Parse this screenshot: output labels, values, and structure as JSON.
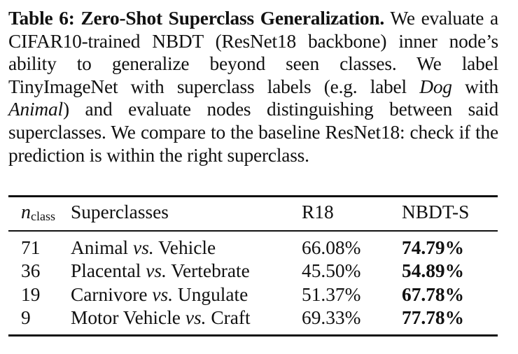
{
  "caption": {
    "label": "Table 6: Zero-Shot Superclass Generalization.",
    "part1": " We evaluate a CIFAR10-trained NBDT (ResNet18 backbone) inner node’s ability to generalize beyond seen classes. We label TinyImageNet with superclass labels (e.g. label ",
    "dog": "Dog",
    "part2": " with ",
    "animal": "Animal",
    "part3": ") and evaluate nodes distinguishing between said superclasses. We compare to the baseline ResNet18: check if the prediction is within the right superclass."
  },
  "table": {
    "headers": {
      "nclass_symbol": "n",
      "nclass_sub": "class",
      "superclasses": "Superclasses",
      "r18": "R18",
      "nbdt": "NBDT-S"
    },
    "rows": [
      {
        "n": "71",
        "left": "Animal",
        "vs": "vs.",
        "right": "Vehicle",
        "r18": "66.08%",
        "nbdt": "74.79%"
      },
      {
        "n": "36",
        "left": "Placental",
        "vs": "vs.",
        "right": "Vertebrate",
        "r18": "45.50%",
        "nbdt": "54.89%"
      },
      {
        "n": "19",
        "left": "Carnivore",
        "vs": "vs.",
        "right": "Ungulate",
        "r18": "51.37%",
        "nbdt": "67.78%"
      },
      {
        "n": "9",
        "left": "Motor Vehicle",
        "vs": "vs.",
        "right": "Craft",
        "r18": "69.33%",
        "nbdt": "77.78%"
      }
    ]
  }
}
